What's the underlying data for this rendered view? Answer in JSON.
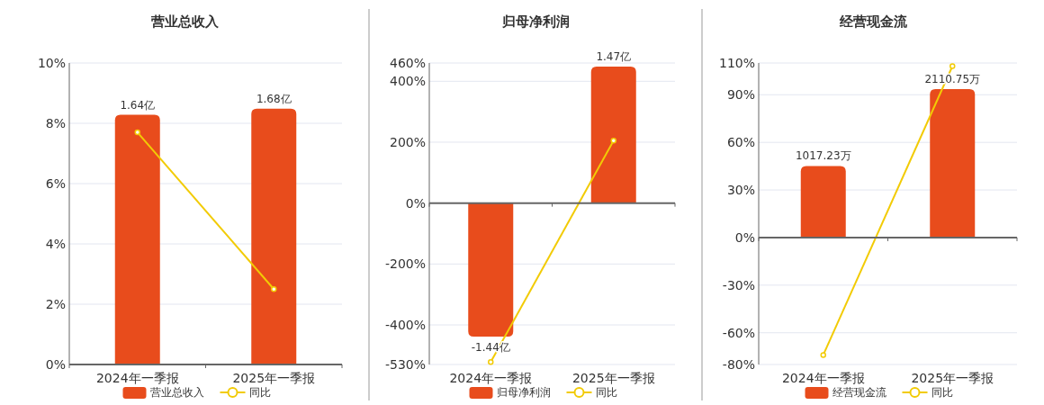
{
  "chart_data": [
    {
      "type": "bar",
      "title": "营业总收入",
      "categories": [
        "2024年一季报",
        "2025年一季报"
      ],
      "legend": "bottom",
      "grid": "y",
      "ylim": [
        0,
        10
      ],
      "yticks": [
        {
          "value": 0,
          "label": "0%"
        },
        {
          "value": 2,
          "label": "2%"
        },
        {
          "value": 4,
          "label": "4%"
        },
        {
          "value": 6,
          "label": "6%"
        },
        {
          "value": 8,
          "label": "8%"
        },
        {
          "value": 10,
          "label": "10%"
        }
      ],
      "y2lim": [
        0,
        1.98
      ],
      "series": [
        {
          "name": "营业总收入",
          "axis": "y2",
          "color": "#e84c1c",
          "values": [
            1.64,
            1.68
          ],
          "value_labels": [
            "1.64亿",
            "1.68亿"
          ]
        },
        {
          "name": "同比",
          "type": "line",
          "color": "#f2cb05",
          "marker": "circle",
          "values": [
            7.7,
            2.5
          ]
        }
      ]
    },
    {
      "type": "bar",
      "title": "归母净利润",
      "categories": [
        "2024年一季报",
        "2025年一季报"
      ],
      "legend": "bottom",
      "grid": "y",
      "ylim": [
        -530,
        460
      ],
      "yticks": [
        {
          "value": -530,
          "label": "-530%"
        },
        {
          "value": -400,
          "label": "-400%"
        },
        {
          "value": -200,
          "label": "-200%"
        },
        {
          "value": 0,
          "label": "0%"
        },
        {
          "value": 200,
          "label": "200%"
        },
        {
          "value": 400,
          "label": "400%"
        },
        {
          "value": 460,
          "label": "460%"
        }
      ],
      "y2lim": [
        -1.74,
        1.51
      ],
      "series": [
        {
          "name": "归母净利润",
          "axis": "y2",
          "color": "#e84c1c",
          "values": [
            -1.44,
            1.47
          ],
          "value_labels": [
            "-1.44亿",
            "1.47亿"
          ]
        },
        {
          "name": "同比",
          "type": "line",
          "color": "#f2cb05",
          "marker": "circle",
          "values": [
            -522,
            205
          ]
        }
      ]
    },
    {
      "type": "bar",
      "title": "经营现金流",
      "categories": [
        "2024年一季报",
        "2025年一季报"
      ],
      "legend": "bottom",
      "grid": "y",
      "ylim": [
        -80,
        110
      ],
      "yticks": [
        {
          "value": -80,
          "label": "-80%"
        },
        {
          "value": -60,
          "label": "-60%"
        },
        {
          "value": -30,
          "label": "-30%"
        },
        {
          "value": 0,
          "label": "0%"
        },
        {
          "value": 30,
          "label": "30%"
        },
        {
          "value": 60,
          "label": "60%"
        },
        {
          "value": 90,
          "label": "90%"
        },
        {
          "value": 110,
          "label": "110%"
        }
      ],
      "y2lim": [
        -1806,
        2483
      ],
      "series": [
        {
          "name": "经营现金流",
          "axis": "y2",
          "color": "#e84c1c",
          "values": [
            1017.23,
            2110.75
          ],
          "value_labels": [
            "1017.23万",
            "2110.75万"
          ]
        },
        {
          "name": "同比",
          "type": "line",
          "color": "#f2cb05",
          "marker": "circle",
          "values": [
            -74,
            108
          ]
        }
      ]
    }
  ]
}
